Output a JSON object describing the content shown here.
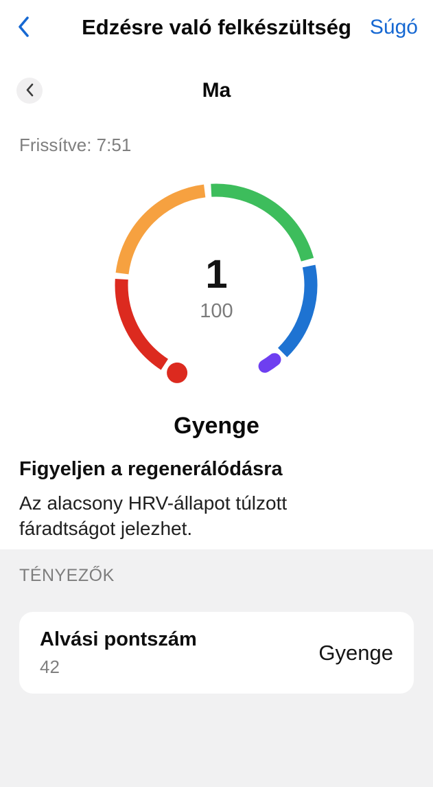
{
  "header": {
    "title": "Edzésre való felkészültség",
    "help_label": "Súgó"
  },
  "day_nav": {
    "label": "Ma"
  },
  "updated_text": "Frissítve: 7:51",
  "gauge": {
    "value": "1",
    "max": "100",
    "status": "Gyenge",
    "segments": [
      {
        "name": "weak",
        "color": "#DC2A1F",
        "start": 123,
        "end": 183.5
      },
      {
        "name": "low",
        "color": "#F6A140",
        "start": 187,
        "end": 263
      },
      {
        "name": "good",
        "color": "#3DBD5C",
        "start": 267,
        "end": 344.5
      },
      {
        "name": "high",
        "color": "#1E73D2",
        "start": 348.5,
        "end": 405.5
      },
      {
        "name": "excellent",
        "color": "#6E3FF0",
        "start": 412,
        "end": 419,
        "cap": "round"
      }
    ],
    "dot": {
      "color": "#DC2A1F",
      "angle": 114,
      "radius": 15
    }
  },
  "insight": {
    "title": "Figyeljen a regenerálódásra",
    "description_line1": "Az alacsony HRV-állapot túlzott",
    "description_line2": "fáradtságot jelezhet."
  },
  "factors": {
    "section_label": "TÉNYEZŐK",
    "items": [
      {
        "name": "Alvási pontszám",
        "value": "42",
        "status": "Gyenge"
      }
    ]
  },
  "colors": {
    "accent_blue": "#1668D2",
    "section_bg": "#F1F1F2",
    "muted_text": "#7F7F7F"
  }
}
